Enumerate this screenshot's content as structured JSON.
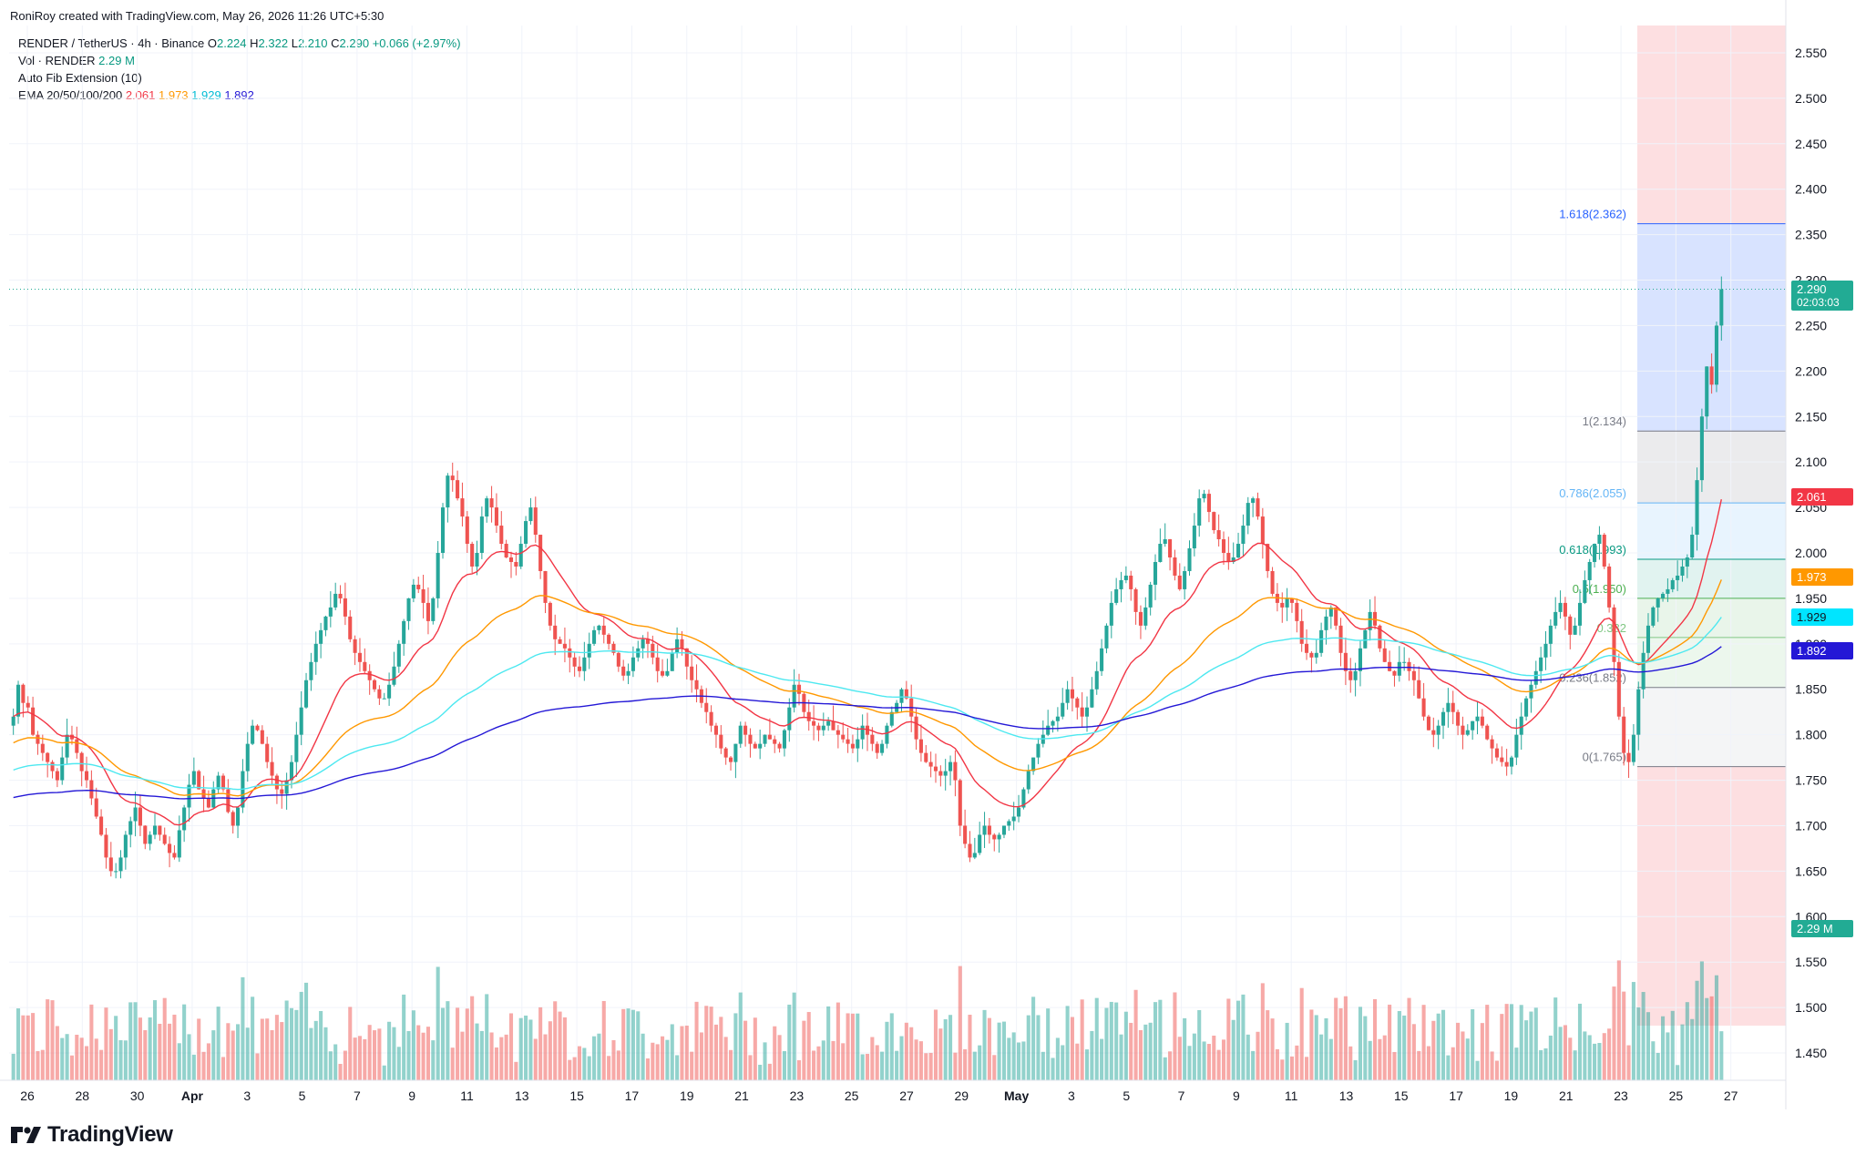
{
  "credit": "RoniRoy created with TradingView.com, May 26, 2026 11:26 UTC+5:30",
  "symbol_line": {
    "symbol": "RENDER / TetherUS · 4h · Binance",
    "o_label": "O",
    "o": "2.224",
    "h_label": "H",
    "h": "2.322",
    "l_label": "L",
    "l": "2.210",
    "c_label": "C",
    "c": "2.290",
    "change": "+0.066 (+2.97%)"
  },
  "vol_line": {
    "label": "Vol · RENDER",
    "value": "2.29 M"
  },
  "fib_indicator": "Auto Fib Extension (10)",
  "ema_line": {
    "label": "EMA 20/50/100/200",
    "values": [
      "2.061",
      "1.973",
      "1.929",
      "1.892"
    ],
    "colors": [
      "#f23645",
      "#ff9800",
      "#4de8f0",
      "#2418d6"
    ]
  },
  "logo_text": "TradingView",
  "price_axis": [
    "2.550",
    "2.500",
    "2.450",
    "2.400",
    "2.350",
    "2.300",
    "2.250",
    "2.200",
    "2.150",
    "2.100",
    "2.050",
    "2.000",
    "1.950",
    "1.900",
    "1.850",
    "1.800",
    "1.750",
    "1.700",
    "1.650",
    "1.600",
    "1.550",
    "1.500",
    "1.450"
  ],
  "time_axis": [
    "26",
    "28",
    "30",
    "Apr",
    "3",
    "5",
    "7",
    "9",
    "11",
    "13",
    "15",
    "17",
    "19",
    "21",
    "23",
    "25",
    "27",
    "29",
    "May",
    "3",
    "5",
    "7",
    "9",
    "11",
    "13",
    "15",
    "17",
    "19",
    "21",
    "23",
    "25",
    "27"
  ],
  "fib_levels": [
    {
      "label": "1.618(2.362)",
      "value": 2.362,
      "color": "#2962ff"
    },
    {
      "label": "1(2.134)",
      "value": 2.134,
      "color": "#787b86"
    },
    {
      "label": "0.786(2.055)",
      "value": 2.055,
      "color": "#64b5f6"
    },
    {
      "label": "0.618(1.993)",
      "value": 1.993,
      "color": "#089981"
    },
    {
      "label": "0.5(1.950)",
      "value": 1.95,
      "color": "#4caf50"
    },
    {
      "label": "0.382",
      "value": 1.907,
      "color": "#81c784"
    },
    {
      "label": "0.236(1.852)",
      "value": 1.852,
      "color": "#787b86"
    },
    {
      "label": "0(1.765)",
      "value": 1.765,
      "color": "#787b86"
    }
  ],
  "price_tags": [
    {
      "text": "2.290",
      "color": "#22ab94",
      "sub": "02:03:03"
    },
    {
      "text": "2.061",
      "color": "#f23645"
    },
    {
      "text": "1.973",
      "color": "#ff9800"
    },
    {
      "text": "1.929",
      "color": "#00e5ff",
      "text_color": "#131722"
    },
    {
      "text": "1.892",
      "color": "#2418d6"
    },
    {
      "text": "2.29 M",
      "color": "#22ab94"
    }
  ],
  "chart_data": {
    "type": "candlestick",
    "title": "RENDER / TetherUS · 4h · Binance",
    "ylim": [
      1.42,
      2.58
    ],
    "closes": [
      1.82,
      1.855,
      1.835,
      1.83,
      1.8,
      1.79,
      1.78,
      1.77,
      1.76,
      1.75,
      1.775,
      1.8,
      1.795,
      1.78,
      1.76,
      1.75,
      1.73,
      1.71,
      1.69,
      1.665,
      1.65,
      1.65,
      1.665,
      1.69,
      1.705,
      1.72,
      1.7,
      1.68,
      1.69,
      1.7,
      1.69,
      1.68,
      1.67,
      1.665,
      1.695,
      1.72,
      1.745,
      1.76,
      1.74,
      1.73,
      1.72,
      1.74,
      1.755,
      1.74,
      1.715,
      1.7,
      1.72,
      1.76,
      1.79,
      1.81,
      1.805,
      1.79,
      1.77,
      1.755,
      1.74,
      1.735,
      1.75,
      1.77,
      1.8,
      1.83,
      1.86,
      1.88,
      1.9,
      1.915,
      1.93,
      1.94,
      1.955,
      1.95,
      1.93,
      1.905,
      1.89,
      1.88,
      1.87,
      1.86,
      1.85,
      1.84,
      1.84,
      1.855,
      1.875,
      1.9,
      1.925,
      1.95,
      1.965,
      1.96,
      1.945,
      1.925,
      1.95,
      2.0,
      2.05,
      2.085,
      2.08,
      2.06,
      2.04,
      2.01,
      1.985,
      2.0,
      2.04,
      2.06,
      2.05,
      2.03,
      2.01,
      1.995,
      1.99,
      1.985,
      2.01,
      2.035,
      2.05,
      2.02,
      1.98,
      1.945,
      1.92,
      1.905,
      1.9,
      1.895,
      1.885,
      1.875,
      1.87,
      1.885,
      1.9,
      1.915,
      1.92,
      1.91,
      1.9,
      1.89,
      1.875,
      1.865,
      1.87,
      1.885,
      1.895,
      1.905,
      1.9,
      1.885,
      1.87,
      1.865,
      1.87,
      1.89,
      1.905,
      1.895,
      1.875,
      1.86,
      1.85,
      1.835,
      1.825,
      1.81,
      1.8,
      1.785,
      1.775,
      1.77,
      1.79,
      1.81,
      1.8,
      1.79,
      1.785,
      1.79,
      1.8,
      1.795,
      1.79,
      1.785,
      1.805,
      1.83,
      1.855,
      1.845,
      1.825,
      1.815,
      1.81,
      1.805,
      1.81,
      1.815,
      1.805,
      1.8,
      1.795,
      1.79,
      1.785,
      1.795,
      1.81,
      1.8,
      1.79,
      1.78,
      1.79,
      1.81,
      1.825,
      1.835,
      1.85,
      1.84,
      1.82,
      1.795,
      1.78,
      1.77,
      1.765,
      1.76,
      1.755,
      1.76,
      1.77,
      1.75,
      1.7,
      1.68,
      1.665,
      1.67,
      1.69,
      1.7,
      1.69,
      1.685,
      1.69,
      1.7,
      1.705,
      1.71,
      1.72,
      1.74,
      1.76,
      1.775,
      1.79,
      1.8,
      1.81,
      1.815,
      1.82,
      1.835,
      1.85,
      1.84,
      1.83,
      1.82,
      1.83,
      1.85,
      1.87,
      1.895,
      1.92,
      1.945,
      1.96,
      1.97,
      1.975,
      1.96,
      1.935,
      1.92,
      1.94,
      1.965,
      1.99,
      2.01,
      2.015,
      1.995,
      1.975,
      1.96,
      1.98,
      2.005,
      2.03,
      2.06,
      2.065,
      2.045,
      2.025,
      2.015,
      2.0,
      1.99,
      1.995,
      2.01,
      2.03,
      2.055,
      2.06,
      2.04,
      2.01,
      1.98,
      1.955,
      1.945,
      1.94,
      1.95,
      1.945,
      1.925,
      1.9,
      1.89,
      1.885,
      1.89,
      1.915,
      1.93,
      1.94,
      1.92,
      1.89,
      1.87,
      1.86,
      1.87,
      1.895,
      1.915,
      1.935,
      1.92,
      1.895,
      1.88,
      1.87,
      1.865,
      1.88,
      1.88,
      1.87,
      1.86,
      1.84,
      1.82,
      1.805,
      1.8,
      1.81,
      1.825,
      1.835,
      1.825,
      1.81,
      1.8,
      1.805,
      1.815,
      1.82,
      1.81,
      1.795,
      1.785,
      1.775,
      1.77,
      1.765,
      1.775,
      1.8,
      1.82,
      1.84,
      1.855,
      1.87,
      1.885,
      1.9,
      1.92,
      1.935,
      1.945,
      1.93,
      1.91,
      1.92,
      1.945,
      1.97,
      1.99,
      2.01,
      2.02,
      1.985,
      1.94,
      1.88,
      1.82,
      1.78,
      1.77,
      1.8,
      1.85,
      1.89,
      1.92,
      1.94,
      1.95,
      1.955,
      1.96,
      1.97,
      1.975,
      1.985,
      1.995,
      2.02,
      2.08,
      2.15,
      2.205,
      2.185,
      2.25,
      2.29
    ],
    "ema_periods": [
      20,
      50,
      100,
      200
    ],
    "ema_last_values": [
      2.061,
      1.973,
      1.929,
      1.892
    ],
    "last_price": 2.29
  }
}
